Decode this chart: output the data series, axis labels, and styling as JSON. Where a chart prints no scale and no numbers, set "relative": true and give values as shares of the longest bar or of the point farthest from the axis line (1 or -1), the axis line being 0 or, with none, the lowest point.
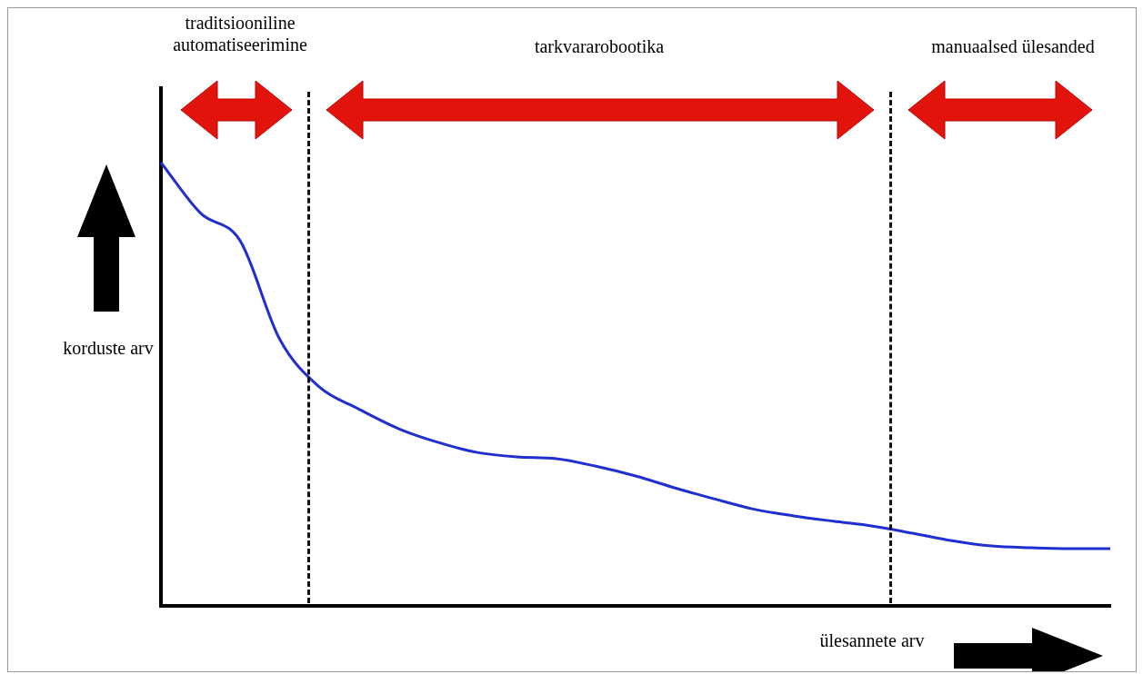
{
  "chart_data": {
    "type": "line",
    "relative": true,
    "xlabel": "ülesannete arv",
    "ylabel": "korduste arv",
    "categories": [
      null,
      null,
      null,
      null,
      null,
      null,
      null,
      null,
      null,
      null,
      null,
      null,
      null,
      null,
      null,
      null,
      null,
      null,
      null,
      null,
      null,
      null,
      null,
      null,
      null
    ],
    "series": [
      {
        "color": "#1f2fd0",
        "values": [
          1,
          0.886,
          0.824,
          0.602,
          0.494,
          0.444,
          0.4,
          0.369,
          0.346,
          0.336,
          0.332,
          0.315,
          0.293,
          0.266,
          0.241,
          0.218,
          0.203,
          0.191,
          0.18,
          0.164,
          0.147,
          0.135,
          0.131,
          0.129,
          0.129
        ]
      }
    ],
    "annotations": [
      "traditsiooniline automatiseerimine",
      "tarkvararobootika",
      "manuaalsed ülesanded"
    ],
    "grid": false,
    "legend": false,
    "marker": "none",
    "line_style": "solid"
  }
}
